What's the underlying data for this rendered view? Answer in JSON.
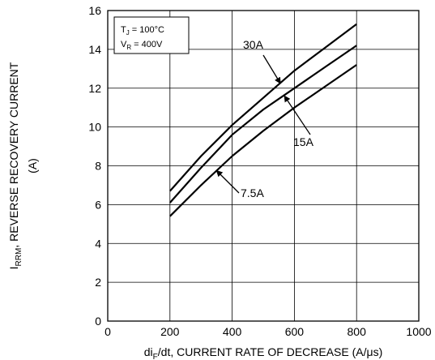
{
  "chart_data": {
    "type": "line",
    "xlabel_parts": [
      "di",
      "F",
      "/dt, CURRENT RATE OF DECREASE (A/μs)"
    ],
    "ylabel_parts": [
      "I",
      "RRM",
      ", REVERSE RECOVERY CURRENT"
    ],
    "ylabel_unit": "(A)",
    "xlim": [
      0,
      1000
    ],
    "ylim": [
      0,
      16
    ],
    "xticks": [
      0,
      200,
      400,
      600,
      800,
      1000
    ],
    "yticks": [
      0,
      2,
      4,
      6,
      8,
      10,
      12,
      14,
      16
    ],
    "grid": true,
    "conditions": {
      "tj": [
        "T",
        "J",
        " = 100°C"
      ],
      "vr": [
        "V",
        "R",
        " = 400V"
      ]
    },
    "series": [
      {
        "name": "30A",
        "x": [
          200,
          300,
          400,
          500,
          600,
          700,
          800
        ],
        "y": [
          6.7,
          8.5,
          10.1,
          11.5,
          12.9,
          14.1,
          15.3
        ]
      },
      {
        "name": "15A",
        "x": [
          200,
          300,
          400,
          500,
          600,
          700,
          800
        ],
        "y": [
          6.1,
          7.9,
          9.6,
          10.9,
          12.0,
          13.1,
          14.2
        ]
      },
      {
        "name": "7.5A",
        "x": [
          200,
          300,
          400,
          500,
          600,
          700,
          800
        ],
        "y": [
          5.4,
          7.0,
          8.5,
          9.8,
          11.0,
          12.1,
          13.2
        ]
      }
    ]
  }
}
